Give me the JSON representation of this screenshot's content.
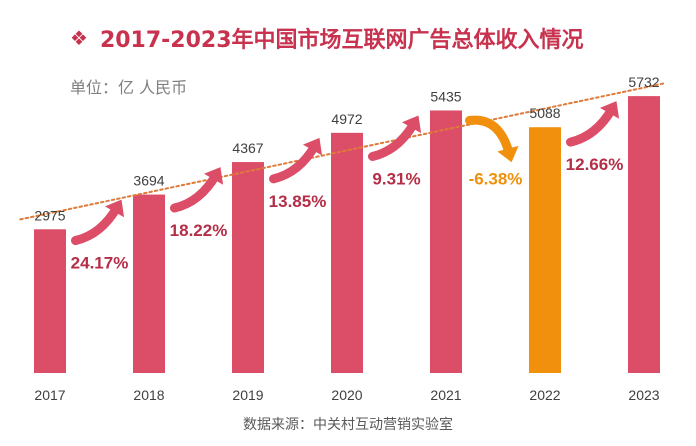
{
  "header": {
    "marker": "❖",
    "title": "2017-2023年中国市场互联网广告总体收入情况",
    "unit": "单位：亿 人民币"
  },
  "footer": {
    "source": "数据来源：中关村互动营销实验室"
  },
  "chart_data": {
    "type": "bar",
    "title": "2017-2023年中国市场互联网广告总体收入情况",
    "ylabel": "",
    "xlabel": "",
    "categories": [
      "2017",
      "2018",
      "2019",
      "2020",
      "2021",
      "2022",
      "2023"
    ],
    "values": [
      2975,
      3694,
      4367,
      4972,
      5435,
      5088,
      5732
    ],
    "value_labels": [
      "2975",
      "3694",
      "4367",
      "4972",
      "5435",
      "5088",
      "5732"
    ],
    "growth_rates": [
      "24.17%",
      "18.22%",
      "13.85%",
      "9.31%",
      "-6.38%",
      "12.66%"
    ],
    "ylim": [
      0,
      5900
    ],
    "colors": {
      "default_bar": "#dc4d68",
      "highlight_bar": "#f0900c",
      "trend": "#e07a3a",
      "growth_text": "#b42e48",
      "negative_text": "#f0900c"
    },
    "highlight_index": 5,
    "trendline": true,
    "grid": false
  }
}
